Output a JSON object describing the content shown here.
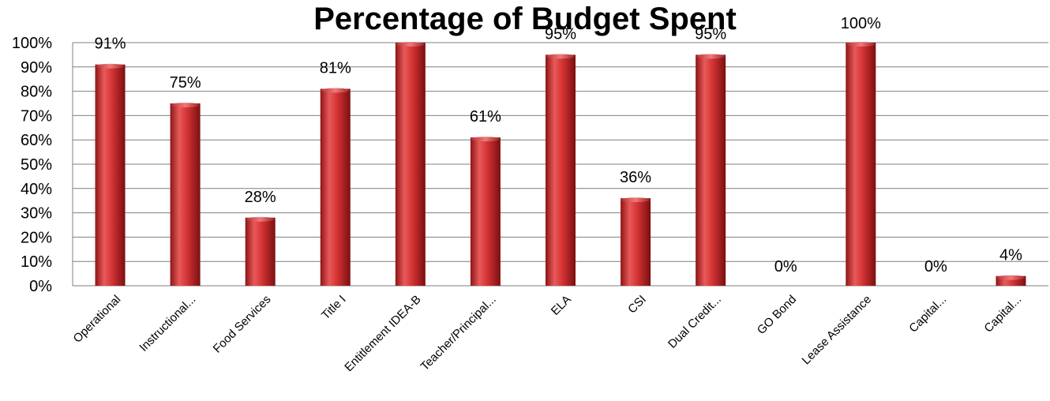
{
  "chart_data": {
    "type": "bar",
    "title": "Percentage of Budget Spent",
    "categories": [
      "Operational",
      "Instructional...",
      "Food Services",
      "Title I",
      "Entitlement IDEA-B",
      "Teacher/Principal...",
      "ELA",
      "CSI",
      "Dual Credit...",
      "GO Bond",
      "Lease Assistance",
      "Capital...",
      "Capital..."
    ],
    "values": [
      91,
      75,
      28,
      81,
      100,
      61,
      95,
      36,
      95,
      0,
      100,
      0,
      4
    ],
    "data_labels": [
      "91%",
      "75%",
      "28%",
      "81%",
      "",
      "61%",
      "95%",
      "36%",
      "95%",
      "0%",
      "100%",
      "0%",
      "4%"
    ],
    "yticks": [
      "0%",
      "10%",
      "20%",
      "30%",
      "40%",
      "50%",
      "60%",
      "70%",
      "80%",
      "90%",
      "100%"
    ],
    "ylim": [
      0,
      100
    ],
    "grid": true,
    "bar_color": "#c8282a"
  }
}
